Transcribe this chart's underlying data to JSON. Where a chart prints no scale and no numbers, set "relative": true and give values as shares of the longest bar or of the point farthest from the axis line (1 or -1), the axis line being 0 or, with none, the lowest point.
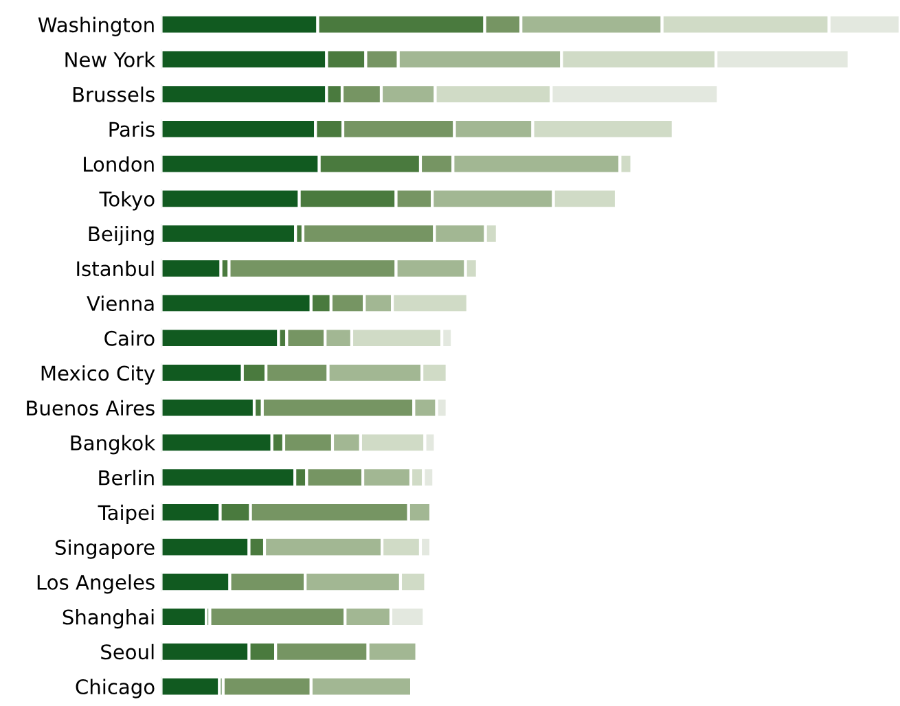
{
  "chart_data": {
    "type": "bar",
    "orientation": "horizontal",
    "stacked": true,
    "relative": true,
    "categories": [
      "Washington",
      "New York",
      "Brussels",
      "Paris",
      "London",
      "Tokyo",
      "Beijing",
      "Istanbul",
      "Vienna",
      "Cairo",
      "Mexico City",
      "Buenos Aires",
      "Bangkok",
      "Berlin",
      "Taipei",
      "Singapore",
      "Los Angeles",
      "Shanghai",
      "Seoul",
      "Chicago"
    ],
    "series": [
      {
        "color": "#115a20",
        "values": [
          0.212,
          0.224,
          0.224,
          0.209,
          0.214,
          0.187,
          0.182,
          0.081,
          0.203,
          0.159,
          0.11,
          0.126,
          0.15,
          0.181,
          0.08,
          0.119,
          0.093,
          0.061,
          0.119,
          0.079
        ]
      },
      {
        "color": "#4a7a3e",
        "values": [
          0.226,
          0.053,
          0.021,
          0.037,
          0.137,
          0.131,
          0.01,
          0.011,
          0.027,
          0.011,
          0.032,
          0.011,
          0.016,
          0.016,
          0.041,
          0.021,
          0,
          0.005,
          0.036,
          0.005
        ]
      },
      {
        "color": "#769563",
        "values": [
          0.049,
          0.044,
          0.053,
          0.151,
          0.044,
          0.049,
          0.178,
          0.226,
          0.045,
          0.052,
          0.084,
          0.205,
          0.066,
          0.076,
          0.214,
          0,
          0.102,
          0.183,
          0.125,
          0.119
        ]
      },
      {
        "color": "#a2b793",
        "values": [
          0.191,
          0.221,
          0.073,
          0.106,
          0.226,
          0.164,
          0.069,
          0.094,
          0.038,
          0.036,
          0.127,
          0.031,
          0.038,
          0.065,
          0.03,
          0.159,
          0.129,
          0.062,
          0.066,
          0.136
        ]
      },
      {
        "color": "#d0dbc6",
        "values": [
          0.226,
          0.209,
          0.157,
          0.19,
          0.016,
          0.085,
          0.016,
          0.016,
          0.102,
          0.122,
          0.034,
          0,
          0.087,
          0.017,
          0,
          0.052,
          0.034,
          0,
          0,
          0
        ]
      },
      {
        "color": "#e3e8df",
        "values": [
          0.096,
          0.18,
          0.226,
          0,
          0,
          0,
          0,
          0,
          0,
          0.014,
          0,
          0.014,
          0.014,
          0.014,
          0,
          0.014,
          0,
          0.045,
          0,
          0
        ]
      }
    ]
  }
}
